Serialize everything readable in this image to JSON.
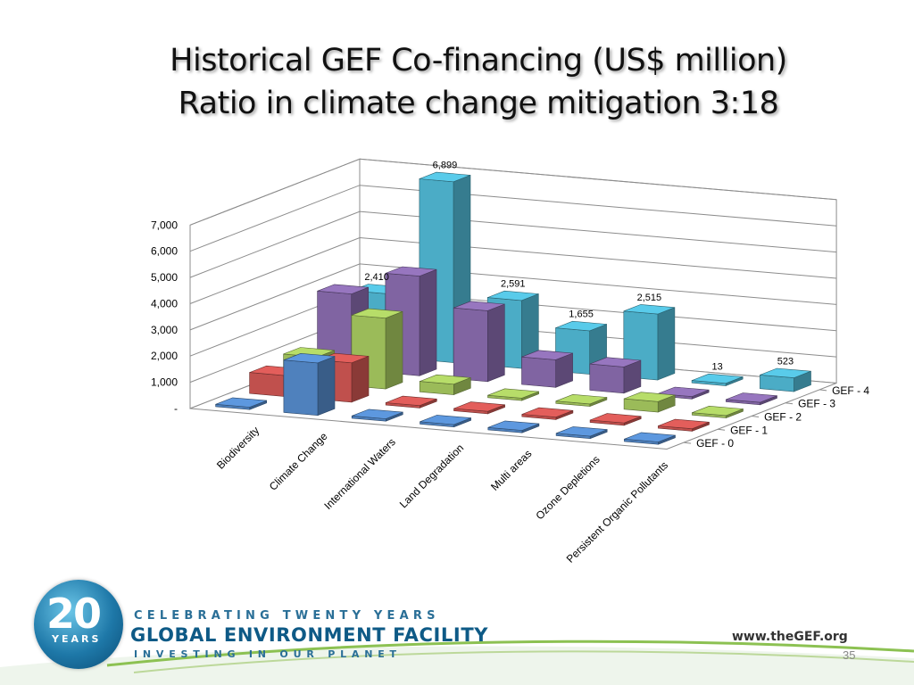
{
  "slide": {
    "title_line1": "Historical GEF Co-financing (US$ million)",
    "title_line2": "Ratio in climate change mitigation  3:18",
    "page_number": "35"
  },
  "footer": {
    "logo_number": "20",
    "logo_years": "YEARS",
    "celebrating": "CELEBRATING TWENTY YEARS",
    "organization": "GLOBAL ENVIRONMENT FACILITY",
    "tagline": "INVESTING IN OUR PLANET",
    "website": "www.theGEF.org"
  },
  "chart_data": {
    "type": "bar",
    "style": "3d-column",
    "title": "",
    "categories": [
      "Biodiversity",
      "Climate Change",
      "International Waters",
      "Land Degradation",
      "Multi areas",
      "Ozone Depletions",
      "Persistent Organic Pollutants"
    ],
    "series": [
      {
        "name": "GEF - 0",
        "color": "#4f81bd",
        "values": [
          0,
          2000,
          0,
          0,
          0,
          0,
          0
        ]
      },
      {
        "name": "GEF - 1",
        "color": "#c0504d",
        "values": [
          800,
          1500,
          0,
          0,
          0,
          0,
          0
        ]
      },
      {
        "name": "GEF - 2",
        "color": "#9bbb59",
        "values": [
          1000,
          2700,
          400,
          0,
          0,
          400,
          0
        ]
      },
      {
        "name": "GEF - 3",
        "color": "#8064a2",
        "values": [
          2900,
          3800,
          2700,
          1050,
          1000,
          0,
          0
        ]
      },
      {
        "name": "GEF - 4",
        "color": "#4bacc6",
        "values": [
          2410,
          6899,
          2591,
          1655,
          2515,
          13,
          523
        ]
      }
    ],
    "data_labels": {
      "series": "GEF - 4",
      "labels": [
        "2,410",
        "6,899",
        "2,591",
        "1,655",
        "2,515",
        "13",
        "523"
      ]
    },
    "y_ticks": [
      "-",
      "1,000",
      "2,000",
      "3,000",
      "4,000",
      "5,000",
      "6,000",
      "7,000"
    ],
    "ylim": [
      0,
      7000
    ],
    "grid": true,
    "legend_position": "right"
  }
}
